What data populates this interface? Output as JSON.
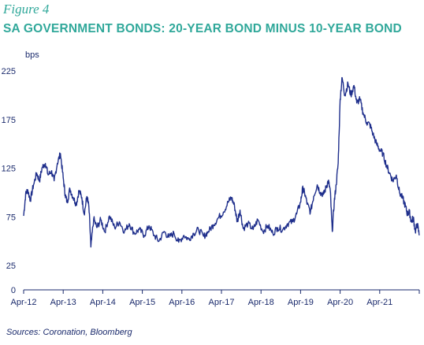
{
  "figure_label": "Figure 4",
  "title": "SA GOVERNMENT BONDS: 20-YEAR BOND MINUS 10-YEAR BOND",
  "source": "Sources: Coronation, Bloomberg",
  "colors": {
    "line": "#1f2f8c",
    "accent": "#30a89a",
    "text": "#1a2a6c",
    "axis": "#1a2a6c"
  },
  "chart_data": {
    "type": "line",
    "title": "SA GOVERNMENT BONDS: 20-YEAR BOND MINUS 10-YEAR BOND",
    "xlabel": "",
    "ylabel": "bps",
    "ylim": [
      0,
      225
    ],
    "yticks": [
      0,
      25,
      75,
      125,
      175,
      225
    ],
    "xticks": [
      "Apr-12",
      "Apr-13",
      "Apr-14",
      "Apr-15",
      "Apr-16",
      "Apr-17",
      "Apr-18",
      "Apr-19",
      "Apr-20",
      "Apr-21"
    ],
    "xlim": [
      2012.25,
      2022.25
    ],
    "grid": false,
    "series": [
      {
        "x": [
          2012.25,
          2012.3,
          2012.35,
          2012.42,
          2012.5,
          2012.58,
          2012.65,
          2012.72,
          2012.8,
          2012.87,
          2012.95,
          2013.02,
          2013.1,
          2013.18,
          2013.25,
          2013.3,
          2013.35,
          2013.42,
          2013.5,
          2013.58,
          2013.65,
          2013.72,
          2013.78,
          2013.85,
          2013.9,
          2013.95,
          2014.02,
          2014.1,
          2014.2,
          2014.3,
          2014.42,
          2014.55,
          2014.67,
          2014.8,
          2014.92,
          2015.05,
          2015.17,
          2015.3,
          2015.42,
          2015.55,
          2015.67,
          2015.8,
          2015.92,
          2016.05,
          2016.17,
          2016.3,
          2016.42,
          2016.55,
          2016.67,
          2016.8,
          2016.92,
          2017.05,
          2017.17,
          2017.3,
          2017.42,
          2017.5,
          2017.58,
          2017.65,
          2017.72,
          2017.8,
          2017.92,
          2018.05,
          2018.17,
          2018.3,
          2018.42,
          2018.55,
          2018.67,
          2018.8,
          2018.92,
          2019.05,
          2019.15,
          2019.25,
          2019.3,
          2019.35,
          2019.42,
          2019.5,
          2019.58,
          2019.67,
          2019.75,
          2019.83,
          2019.9,
          2019.95,
          2020.0,
          2020.05,
          2020.1,
          2020.15,
          2020.2,
          2020.25,
          2020.3,
          2020.37,
          2020.45,
          2020.52,
          2020.6,
          2020.67,
          2020.75,
          2020.83,
          2020.92,
          2021.0,
          2021.08,
          2021.17,
          2021.25,
          2021.33,
          2021.42,
          2021.5,
          2021.58,
          2021.67,
          2021.75,
          2021.83,
          2021.9,
          2021.95,
          2022.0,
          2022.05,
          2022.1,
          2022.15,
          2022.2,
          2022.25
        ],
        "y": [
          76,
          98,
          103,
          92,
          108,
          120,
          112,
          126,
          130,
          118,
          122,
          112,
          130,
          140,
          115,
          98,
          90,
          104,
          95,
          88,
          102,
          95,
          78,
          96,
          85,
          44,
          73,
          64,
          72,
          60,
          76,
          64,
          70,
          60,
          68,
          58,
          62,
          56,
          66,
          56,
          50,
          60,
          54,
          58,
          49,
          56,
          52,
          58,
          62,
          55,
          60,
          67,
          74,
          80,
          90,
          95,
          86,
          70,
          82,
          63,
          68,
          62,
          72,
          60,
          66,
          58,
          64,
          62,
          68,
          70,
          78,
          90,
          104,
          100,
          88,
          80,
          96,
          108,
          100,
          98,
          106,
          112,
          102,
          60,
          90,
          108,
          130,
          196,
          218,
          200,
          212,
          200,
          210,
          192,
          196,
          182,
          172,
          170,
          160,
          150,
          144,
          140,
          128,
          120,
          112,
          118,
          100,
          94,
          86,
          78,
          80,
          70,
          74,
          60,
          68,
          56
        ]
      }
    ]
  }
}
